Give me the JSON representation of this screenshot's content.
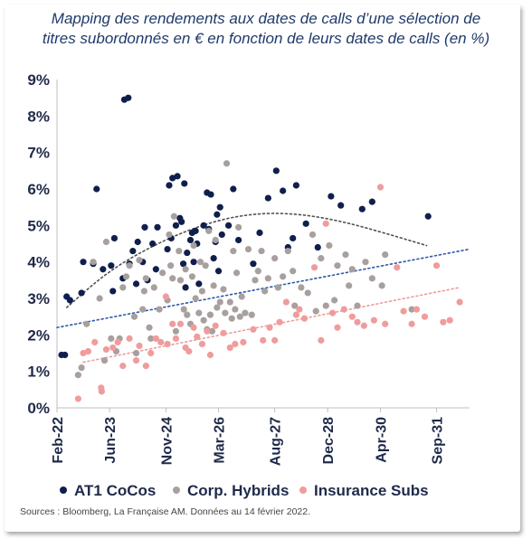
{
  "title": {
    "line1": "Mapping des rendements aux dates de calls d’une sélection de",
    "line2": "titres subordonnés en € en fonction de leurs dates de calls (en %)"
  },
  "source": "Sources : Bloomberg, La Française AM. Données au 14 février 2022.",
  "chart_data": {
    "type": "scatter",
    "x_axis": {
      "kind": "date",
      "min": "2022-02-01",
      "max": "2032-07-01",
      "ticks": [
        {
          "date": "2022-02-01",
          "label": "Feb-22"
        },
        {
          "date": "2023-06-01",
          "label": "Jun-23"
        },
        {
          "date": "2024-11-01",
          "label": "Nov-24"
        },
        {
          "date": "2026-03-01",
          "label": "Mar-26"
        },
        {
          "date": "2027-08-01",
          "label": "Aug-27"
        },
        {
          "date": "2028-12-01",
          "label": "Dec-28"
        },
        {
          "date": "2030-04-01",
          "label": "Apr-30"
        },
        {
          "date": "2031-09-01",
          "label": "Sep-31"
        }
      ]
    },
    "y_axis": {
      "min": 0,
      "max": 9,
      "step": 1,
      "tick_labels": [
        "0%",
        "1%",
        "2%",
        "3%",
        "4%",
        "5%",
        "6%",
        "7%",
        "8%",
        "9%"
      ]
    },
    "grid": false,
    "legend_position": "bottom",
    "series": [
      {
        "name": "AT1 CoCos",
        "color": "#0f1f4d",
        "points": [
          [
            "2022-03-15",
            1.45
          ],
          [
            "2022-04-15",
            1.45
          ],
          [
            "2022-05-01",
            3.05
          ],
          [
            "2022-06-01",
            2.95
          ],
          [
            "2022-09-15",
            3.15
          ],
          [
            "2022-10-01",
            4.0
          ],
          [
            "2023-01-01",
            3.95
          ],
          [
            "2023-02-01",
            6.0
          ],
          [
            "2023-04-01",
            3.8
          ],
          [
            "2023-06-15",
            3.9
          ],
          [
            "2023-07-01",
            3.2
          ],
          [
            "2023-07-15",
            4.65
          ],
          [
            "2023-10-01",
            3.55
          ],
          [
            "2023-10-15",
            8.45
          ],
          [
            "2023-11-20",
            8.5
          ],
          [
            "2023-12-01",
            3.95
          ],
          [
            "2024-01-01",
            4.3
          ],
          [
            "2024-02-01",
            3.4
          ],
          [
            "2024-02-15",
            4.55
          ],
          [
            "2024-04-01",
            4.0
          ],
          [
            "2024-04-20",
            4.95
          ],
          [
            "2024-05-15",
            3.5
          ],
          [
            "2024-07-01",
            4.5
          ],
          [
            "2024-08-01",
            3.8
          ],
          [
            "2024-08-15",
            4.95
          ],
          [
            "2024-11-15",
            4.35
          ],
          [
            "2024-12-01",
            6.1
          ],
          [
            "2024-12-20",
            4.65
          ],
          [
            "2025-01-01",
            6.3
          ],
          [
            "2025-02-01",
            5.0
          ],
          [
            "2025-02-15",
            6.35
          ],
          [
            "2025-03-10",
            5.2
          ],
          [
            "2025-03-25",
            5.1
          ],
          [
            "2025-04-10",
            3.95
          ],
          [
            "2025-04-20",
            6.15
          ],
          [
            "2025-05-01",
            3.3
          ],
          [
            "2025-05-15",
            4.25
          ],
          [
            "2025-06-15",
            4.6
          ],
          [
            "2025-07-01",
            4.8
          ],
          [
            "2025-07-15",
            4.0
          ],
          [
            "2025-08-01",
            4.85
          ],
          [
            "2025-08-15",
            4.5
          ],
          [
            "2025-09-01",
            3.4
          ],
          [
            "2025-10-15",
            5.0
          ],
          [
            "2025-11-15",
            5.9
          ],
          [
            "2025-12-01",
            4.9
          ],
          [
            "2025-12-20",
            5.85
          ],
          [
            "2026-01-15",
            4.1
          ],
          [
            "2026-02-01",
            4.55
          ],
          [
            "2026-02-15",
            5.3
          ],
          [
            "2026-03-01",
            3.75
          ],
          [
            "2026-03-15",
            5.5
          ],
          [
            "2026-04-01",
            4.75
          ],
          [
            "2026-06-01",
            5.0
          ],
          [
            "2026-07-15",
            6.0
          ],
          [
            "2026-09-01",
            4.6
          ],
          [
            "2027-01-15",
            3.95
          ],
          [
            "2027-03-15",
            4.8
          ],
          [
            "2027-06-01",
            5.75
          ],
          [
            "2027-08-15",
            6.5
          ],
          [
            "2027-10-15",
            5.95
          ],
          [
            "2027-12-01",
            4.4
          ],
          [
            "2028-01-15",
            4.65
          ],
          [
            "2028-02-15",
            6.1
          ],
          [
            "2028-05-15",
            5.05
          ],
          [
            "2028-09-01",
            4.4
          ],
          [
            "2029-01-01",
            5.8
          ],
          [
            "2029-04-01",
            5.55
          ],
          [
            "2029-10-15",
            5.45
          ],
          [
            "2030-01-15",
            5.65
          ],
          [
            "2031-06-15",
            5.25
          ]
        ]
      },
      {
        "name": "Corp. Hybrids",
        "color": "#a8a09e",
        "points": [
          [
            "2022-08-15",
            0.9
          ],
          [
            "2022-09-15",
            1.1
          ],
          [
            "2022-11-01",
            2.3
          ],
          [
            "2023-01-01",
            4.0
          ],
          [
            "2023-03-01",
            3.0
          ],
          [
            "2023-04-15",
            1.3
          ],
          [
            "2023-05-01",
            4.55
          ],
          [
            "2023-06-15",
            1.9
          ],
          [
            "2023-08-01",
            1.55
          ],
          [
            "2023-09-01",
            1.9
          ],
          [
            "2023-10-01",
            3.3
          ],
          [
            "2023-11-01",
            3.6
          ],
          [
            "2023-12-01",
            3.9
          ],
          [
            "2024-01-15",
            2.5
          ],
          [
            "2024-02-01",
            1.5
          ],
          [
            "2024-03-01",
            4.05
          ],
          [
            "2024-04-01",
            2.7
          ],
          [
            "2024-04-15",
            3.2
          ],
          [
            "2024-05-01",
            3.55
          ],
          [
            "2024-06-01",
            2.2
          ],
          [
            "2024-06-15",
            1.9
          ],
          [
            "2024-07-15",
            3.3
          ],
          [
            "2024-09-01",
            2.7
          ],
          [
            "2024-10-01",
            3.7
          ],
          [
            "2024-11-15",
            2.95
          ],
          [
            "2024-12-01",
            4.75
          ],
          [
            "2024-12-15",
            3.9
          ],
          [
            "2025-01-01",
            3.55
          ],
          [
            "2025-01-15",
            5.25
          ],
          [
            "2025-02-01",
            2.1
          ],
          [
            "2025-03-01",
            4.3
          ],
          [
            "2025-03-15",
            3.5
          ],
          [
            "2025-04-15",
            2.7
          ],
          [
            "2025-05-01",
            3.8
          ],
          [
            "2025-05-15",
            2.55
          ],
          [
            "2025-06-15",
            2.3
          ],
          [
            "2025-07-01",
            3.6
          ],
          [
            "2025-07-15",
            4.45
          ],
          [
            "2025-08-01",
            3.0
          ],
          [
            "2025-09-01",
            2.6
          ],
          [
            "2025-09-15",
            4.0
          ],
          [
            "2025-10-01",
            3.2
          ],
          [
            "2025-10-15",
            2.4
          ],
          [
            "2025-11-01",
            3.9
          ],
          [
            "2025-11-15",
            2.15
          ],
          [
            "2025-12-01",
            4.85
          ],
          [
            "2025-12-15",
            2.55
          ],
          [
            "2026-01-01",
            2.1
          ],
          [
            "2026-01-15",
            3.35
          ],
          [
            "2026-02-01",
            4.6
          ],
          [
            "2026-02-15",
            2.75
          ],
          [
            "2026-03-15",
            2.9
          ],
          [
            "2026-04-15",
            3.25
          ],
          [
            "2026-05-01",
            2.6
          ],
          [
            "2026-05-15",
            6.7
          ],
          [
            "2026-06-15",
            2.9
          ],
          [
            "2026-07-01",
            2.45
          ],
          [
            "2026-07-15",
            4.3
          ],
          [
            "2026-08-01",
            2.7
          ],
          [
            "2026-08-15",
            3.7
          ],
          [
            "2026-09-01",
            4.95
          ],
          [
            "2026-09-15",
            2.5
          ],
          [
            "2026-10-01",
            3.05
          ],
          [
            "2026-11-01",
            2.6
          ],
          [
            "2026-12-01",
            4.35
          ],
          [
            "2027-01-01",
            2.55
          ],
          [
            "2027-02-01",
            3.5
          ],
          [
            "2027-03-01",
            3.75
          ],
          [
            "2027-04-01",
            4.3
          ],
          [
            "2027-05-01",
            3.2
          ],
          [
            "2027-06-01",
            3.55
          ],
          [
            "2027-08-01",
            4.1
          ],
          [
            "2027-09-01",
            3.3
          ],
          [
            "2027-10-15",
            3.6
          ],
          [
            "2027-12-01",
            4.3
          ],
          [
            "2028-01-15",
            3.75
          ],
          [
            "2028-02-01",
            2.8
          ],
          [
            "2028-04-01",
            3.3
          ],
          [
            "2028-06-01",
            3.15
          ],
          [
            "2028-07-15",
            4.75
          ],
          [
            "2028-08-15",
            2.65
          ],
          [
            "2028-10-01",
            4.1
          ],
          [
            "2028-11-15",
            2.8
          ],
          [
            "2028-12-15",
            4.45
          ],
          [
            "2029-02-01",
            2.95
          ],
          [
            "2029-03-01",
            3.9
          ],
          [
            "2029-05-15",
            4.2
          ],
          [
            "2029-06-15",
            3.35
          ],
          [
            "2029-07-15",
            3.8
          ],
          [
            "2029-09-01",
            2.8
          ],
          [
            "2029-11-15",
            4.0
          ],
          [
            "2030-01-15",
            3.55
          ],
          [
            "2030-04-15",
            3.35
          ],
          [
            "2030-05-15",
            4.2
          ],
          [
            "2031-01-15",
            2.7
          ]
        ]
      },
      {
        "name": "Insurance Subs",
        "color": "#f09c9c",
        "points": [
          [
            "2022-08-15",
            0.25
          ],
          [
            "2022-10-01",
            1.5
          ],
          [
            "2022-11-15",
            1.55
          ],
          [
            "2023-01-15",
            1.8
          ],
          [
            "2023-03-15",
            0.55
          ],
          [
            "2023-03-20",
            0.45
          ],
          [
            "2023-05-01",
            1.6
          ],
          [
            "2023-07-01",
            1.65
          ],
          [
            "2023-08-15",
            1.8
          ],
          [
            "2023-10-01",
            1.15
          ],
          [
            "2023-12-01",
            1.9
          ],
          [
            "2024-02-01",
            1.3
          ],
          [
            "2024-03-01",
            1.7
          ],
          [
            "2024-05-01",
            1.15
          ],
          [
            "2024-06-15",
            1.5
          ],
          [
            "2024-08-01",
            1.9
          ],
          [
            "2024-09-15",
            1.8
          ],
          [
            "2024-11-01",
            3.05
          ],
          [
            "2024-11-15",
            1.75
          ],
          [
            "2025-01-01",
            2.3
          ],
          [
            "2025-02-01",
            1.9
          ],
          [
            "2025-03-15",
            2.3
          ],
          [
            "2025-05-01",
            1.65
          ],
          [
            "2025-06-01",
            1.55
          ],
          [
            "2025-07-15",
            2.2
          ],
          [
            "2025-08-15",
            1.95
          ],
          [
            "2025-10-01",
            1.75
          ],
          [
            "2025-11-15",
            2.1
          ],
          [
            "2025-12-15",
            1.45
          ],
          [
            "2026-02-01",
            2.25
          ],
          [
            "2026-04-15",
            2.05
          ],
          [
            "2026-06-15",
            1.65
          ],
          [
            "2026-08-01",
            1.75
          ],
          [
            "2026-10-15",
            1.8
          ],
          [
            "2027-01-15",
            2.15
          ],
          [
            "2027-04-15",
            1.85
          ],
          [
            "2027-06-15",
            2.2
          ],
          [
            "2027-08-01",
            1.85
          ],
          [
            "2027-09-15",
            2.35
          ],
          [
            "2027-11-15",
            2.9
          ],
          [
            "2028-02-15",
            2.55
          ],
          [
            "2028-03-15",
            2.7
          ],
          [
            "2028-05-01",
            2.45
          ],
          [
            "2028-08-01",
            3.85
          ],
          [
            "2028-10-01",
            1.85
          ],
          [
            "2028-11-15",
            5.05
          ],
          [
            "2029-01-15",
            2.6
          ],
          [
            "2029-03-01",
            2.2
          ],
          [
            "2029-05-01",
            2.7
          ],
          [
            "2029-07-15",
            2.5
          ],
          [
            "2029-09-01",
            2.35
          ],
          [
            "2029-11-01",
            2.25
          ],
          [
            "2030-02-01",
            2.4
          ],
          [
            "2030-04-01",
            6.05
          ],
          [
            "2030-05-15",
            2.3
          ],
          [
            "2030-09-01",
            3.85
          ],
          [
            "2030-11-01",
            2.65
          ],
          [
            "2031-01-15",
            2.3
          ],
          [
            "2031-03-01",
            2.7
          ],
          [
            "2031-05-15",
            2.5
          ],
          [
            "2031-09-01",
            3.9
          ],
          [
            "2031-11-01",
            2.35
          ],
          [
            "2032-01-01",
            2.4
          ],
          [
            "2032-04-01",
            2.9
          ]
        ]
      }
    ],
    "trendlines": [
      {
        "series": "AT1 CoCos",
        "kind": "polynomial",
        "color": "#505050",
        "from": "2022-05-01",
        "to": "2031-06-01",
        "points": [
          [
            "2022-05-01",
            2.75
          ],
          [
            "2023-05-01",
            3.7
          ],
          [
            "2024-05-01",
            4.35
          ],
          [
            "2025-05-01",
            4.85
          ],
          [
            "2026-05-01",
            5.2
          ],
          [
            "2027-05-01",
            5.35
          ],
          [
            "2028-05-01",
            5.3
          ],
          [
            "2029-05-01",
            5.1
          ],
          [
            "2030-05-01",
            4.8
          ],
          [
            "2031-06-01",
            4.45
          ]
        ]
      },
      {
        "series": "Corp. Hybrids",
        "kind": "linear",
        "color": "#2e5aa8",
        "from": "2022-02-01",
        "to": "2032-07-01",
        "points": [
          [
            "2022-02-01",
            2.2
          ],
          [
            "2032-07-01",
            4.35
          ]
        ]
      },
      {
        "series": "Insurance Subs",
        "kind": "linear",
        "color": "#f09c9c",
        "from": "2022-10-01",
        "to": "2032-04-01",
        "points": [
          [
            "2022-10-01",
            1.25
          ],
          [
            "2032-04-01",
            3.3
          ]
        ]
      }
    ]
  }
}
